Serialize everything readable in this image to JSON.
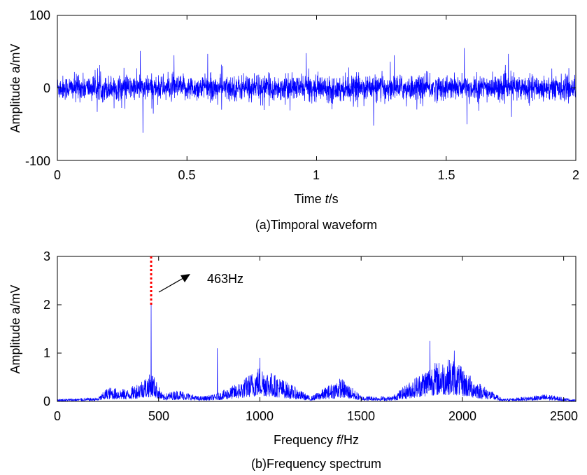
{
  "chart_data": [
    {
      "type": "line",
      "caption": "(a)Timporal waveform",
      "xlabel_prefix": "Time ",
      "xlabel_var": "t",
      "xlabel_suffix": "/s",
      "ylabel": "Amplitude a/mV",
      "xlim": [
        0,
        2
      ],
      "ylim": [
        -100,
        100
      ],
      "xticks": [
        0,
        0.5,
        1,
        1.5,
        2
      ],
      "xtick_labels": [
        "0",
        "0.5",
        "1",
        "1.5",
        "2"
      ],
      "yticks": [
        -100,
        0,
        100
      ],
      "ytick_labels": [
        "-100",
        "0",
        "100"
      ],
      "grid": false,
      "series": [
        {
          "color": "#0000ff",
          "description": "random vibration signal",
          "baseline_amplitude": 15,
          "peaks": [
            {
              "x": 0.32,
              "y": 51
            },
            {
              "x": 0.33,
              "y": -62
            },
            {
              "x": 0.45,
              "y": 45
            },
            {
              "x": 0.58,
              "y": 47
            },
            {
              "x": 0.96,
              "y": 48
            },
            {
              "x": 1.22,
              "y": -52
            },
            {
              "x": 1.3,
              "y": 45
            },
            {
              "x": 1.57,
              "y": 55
            },
            {
              "x": 1.58,
              "y": -50
            },
            {
              "x": 1.74,
              "y": 47
            }
          ]
        }
      ]
    },
    {
      "type": "line",
      "caption": "(b)Frequency spectrum",
      "xlabel_prefix": "Frequency ",
      "xlabel_var": "f",
      "xlabel_suffix": "/Hz",
      "ylabel": "Amplitude a/mV",
      "xlim": [
        0,
        2560
      ],
      "ylim": [
        0,
        3
      ],
      "xticks": [
        0,
        500,
        1000,
        1500,
        2000,
        2500
      ],
      "xtick_labels": [
        "0",
        "500",
        "1000",
        "1500",
        "2000",
        "2500"
      ],
      "yticks": [
        0,
        1,
        2,
        3
      ],
      "ytick_labels": [
        "0",
        "1",
        "2",
        "3"
      ],
      "grid": false,
      "series": [
        {
          "color": "#0000ff",
          "envelope": [
            {
              "x": 0,
              "y": 0.05
            },
            {
              "x": 200,
              "y": 0.08
            },
            {
              "x": 250,
              "y": 0.3
            },
            {
              "x": 350,
              "y": 0.25
            },
            {
              "x": 430,
              "y": 0.5
            },
            {
              "x": 470,
              "y": 0.6
            },
            {
              "x": 520,
              "y": 0.15
            },
            {
              "x": 600,
              "y": 0.25
            },
            {
              "x": 700,
              "y": 0.1
            },
            {
              "x": 780,
              "y": 0.15
            },
            {
              "x": 900,
              "y": 0.4
            },
            {
              "x": 1000,
              "y": 0.75
            },
            {
              "x": 1100,
              "y": 0.5
            },
            {
              "x": 1250,
              "y": 0.1
            },
            {
              "x": 1400,
              "y": 0.5
            },
            {
              "x": 1500,
              "y": 0.12
            },
            {
              "x": 1650,
              "y": 0.1
            },
            {
              "x": 1850,
              "y": 0.8
            },
            {
              "x": 1950,
              "y": 0.9
            },
            {
              "x": 2050,
              "y": 0.5
            },
            {
              "x": 2200,
              "y": 0.05
            },
            {
              "x": 2420,
              "y": 0.15
            },
            {
              "x": 2560,
              "y": 0.03
            }
          ],
          "spikes": [
            {
              "x": 463,
              "y": 2.0
            },
            {
              "x": 790,
              "y": 1.1
            },
            {
              "x": 1840,
              "y": 1.25
            },
            {
              "x": 1000,
              "y": 0.9
            },
            {
              "x": 1960,
              "y": 1.05
            }
          ]
        }
      ],
      "marker": {
        "x": 463,
        "y_from": 2.0,
        "y_to": 3.0,
        "color": "#ff0000",
        "style": "dotted"
      },
      "annotation": {
        "text": "463Hz",
        "arrow_color": "#000000"
      }
    }
  ]
}
